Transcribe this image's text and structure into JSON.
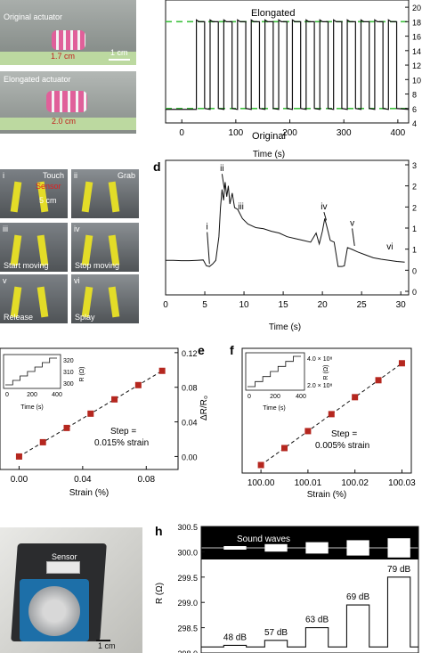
{
  "colors": {
    "trace": "#111111",
    "dashed_green": "#3fc03f",
    "marker_red": "#b5271f",
    "arrow": "#111111",
    "photo_bg_a": "#8a8f8a",
    "photo_bg_c": "#6e7072"
  },
  "panel_a": {
    "original_label": "Original actuator",
    "original_scale": "1.7 cm",
    "original_scalebar": "1 cm",
    "elongated_label": "Elongated actuator",
    "elongated_scale": "2.0 cm"
  },
  "panel_c": {
    "photos": [
      {
        "roman": "i",
        "caption": "Touch"
      },
      {
        "roman": "ii",
        "caption": "Grab"
      },
      {
        "roman": "iii",
        "caption": "Start moving"
      },
      {
        "roman": "iv",
        "caption": "Stop moving"
      },
      {
        "roman": "v",
        "caption": "Release"
      },
      {
        "roman": "vi",
        "caption": "Splay"
      }
    ],
    "sensor_label": "Sensor",
    "scale": "5 cm"
  },
  "panel_g": {
    "sensor_label": "Sensor",
    "scale": "1 cm"
  },
  "chart_data": [
    {
      "id": "b",
      "type": "line",
      "annotations": [
        "Elongated",
        "Original"
      ],
      "xlabel": "Time  (s)",
      "xticks": [
        "0",
        "100",
        "200",
        "300",
        "400"
      ],
      "xlim": [
        -30,
        420
      ],
      "yticks_partial": [
        "4",
        "6",
        "8",
        "10",
        "12",
        "14",
        "16",
        "18",
        "20"
      ],
      "ylim": [
        4,
        21
      ],
      "high_level": 18,
      "low_level": 6,
      "cycles": 15,
      "period_s": 25.4,
      "first_rise_s": 27
    },
    {
      "id": "d",
      "panel_letter": "d",
      "type": "line",
      "xlabel": "Time  (s)",
      "xticks": [
        "0",
        "5",
        "10",
        "15",
        "20",
        "25",
        "30"
      ],
      "xlim": [
        0,
        31
      ],
      "yticks": [
        "0",
        "0",
        "1",
        "1",
        "2",
        "2",
        "3"
      ],
      "ylim": [
        -0.4,
        3.3
      ],
      "x": [
        0,
        1,
        2,
        3,
        4,
        4.8,
        5.2,
        5.6,
        6.0,
        6.4,
        6.8,
        7.0,
        7.2,
        7.4,
        7.6,
        7.8,
        8.0,
        8.2,
        8.5,
        8.8,
        9.2,
        9.8,
        10.5,
        11.5,
        12.5,
        13.5,
        14.5,
        15.5,
        16.5,
        17.5,
        18.5,
        19.2,
        19.6,
        20.0,
        20.3,
        20.6,
        21.0,
        21.5,
        22.0,
        22.5,
        22.8,
        23.2,
        23.8,
        24.5,
        25.5,
        26.5,
        27.5,
        28.5,
        29.5,
        30.5
      ],
      "y": [
        0.55,
        0.55,
        0.54,
        0.54,
        0.55,
        0.56,
        0.4,
        0.38,
        0.45,
        0.55,
        1.2,
        2.0,
        2.5,
        2.2,
        2.7,
        2.3,
        2.6,
        2.1,
        2.4,
        2.0,
        1.95,
        1.7,
        1.55,
        1.45,
        1.42,
        1.35,
        1.3,
        1.2,
        1.15,
        1.1,
        1.05,
        1.3,
        1.0,
        1.35,
        1.7,
        1.45,
        1.1,
        1.05,
        0.38,
        0.38,
        0.4,
        0.9,
        0.85,
        0.78,
        0.7,
        0.62,
        0.58,
        0.55,
        0.52,
        0.5
      ],
      "annotations": [
        "i",
        "ii",
        "iii",
        "iv",
        "v",
        "vi"
      ]
    },
    {
      "id": "e",
      "panel_letter": "e",
      "type": "scatter",
      "xlabel": "Strain (%)",
      "ylabel": "ΔR/R₀",
      "xticks": [
        "0.00",
        "0.04",
        "0.08"
      ],
      "yticks": [
        "0.00",
        "0.04",
        "0.08",
        "0.12"
      ],
      "xlim": [
        -0.012,
        0.1
      ],
      "ylim": [
        -0.015,
        0.125
      ],
      "x": [
        0.0,
        0.015,
        0.03,
        0.045,
        0.06,
        0.075,
        0.09
      ],
      "y": [
        0.0,
        0.0165,
        0.033,
        0.0495,
        0.066,
        0.0825,
        0.099
      ],
      "step_text": [
        "Step =",
        "0.015% strain"
      ],
      "inset": {
        "xlabel": "Time (s)",
        "ylabel": "R (Ω)",
        "xticks": [
          "0",
          "200",
          "400"
        ],
        "yticks": [
          "300",
          "310",
          "320"
        ]
      }
    },
    {
      "id": "f",
      "panel_letter": "f",
      "type": "scatter",
      "xlabel": "Strain (%)",
      "xticks": [
        "100.00",
        "100.01",
        "100.02",
        "100.03"
      ],
      "xlim": [
        99.996,
        100.032
      ],
      "ylim": [
        0,
        1
      ],
      "x": [
        100.0,
        100.005,
        100.01,
        100.015,
        100.02,
        100.025,
        100.03
      ],
      "y": [
        0.0,
        0.17,
        0.34,
        0.51,
        0.68,
        0.85,
        1.02
      ],
      "step_text": [
        "Step =",
        "0.005% strain"
      ],
      "inset": {
        "xlabel": "Time (s)",
        "ylabel": "R (Ω)",
        "xticks": [
          "0",
          "200",
          "400"
        ],
        "yticks": [
          "2.0 × 10⁸",
          "4.0 × 10⁸"
        ]
      }
    },
    {
      "id": "h",
      "panel_letter": "h",
      "type": "line",
      "ylabel": "R (Ω)",
      "yticks": [
        "298.0",
        "298.5",
        "299.0",
        "299.5",
        "300.0",
        "300.5"
      ],
      "ylim": [
        298.0,
        300.5
      ],
      "sound_label": "Sound waves",
      "levels": [
        {
          "db": "48 dB",
          "r": 298.15
        },
        {
          "db": "57 dB",
          "r": 298.25
        },
        {
          "db": "63 dB",
          "r": 298.5
        },
        {
          "db": "69 dB",
          "r": 298.95
        },
        {
          "db": "79 dB",
          "r": 299.5
        }
      ],
      "baseline": 298.12
    }
  ]
}
